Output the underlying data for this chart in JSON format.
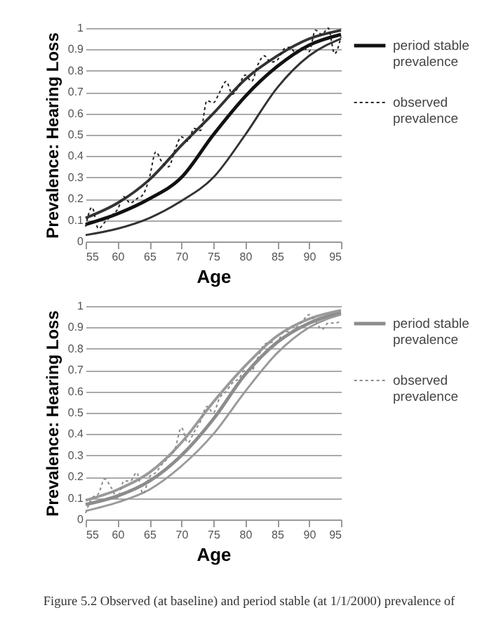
{
  "chart_data": [
    {
      "type": "line",
      "xlabel": "Age",
      "ylabel": "Prevalence: Hearing Loss",
      "xlim": [
        55,
        95
      ],
      "ylim": [
        0,
        1
      ],
      "xticks": [
        55,
        60,
        65,
        70,
        75,
        80,
        85,
        90,
        95
      ],
      "yticks": [
        0,
        0.1,
        0.2,
        0.3,
        0.4,
        0.5,
        0.6,
        0.7,
        0.8,
        0.9,
        1
      ],
      "grid": "y",
      "legend": "right",
      "series": [
        {
          "name": "period stable prevalence",
          "color": "#111111",
          "line_style": "solid",
          "x": [
            55,
            60,
            65,
            70,
            75,
            80,
            85,
            90,
            95
          ],
          "values": [
            0.08,
            0.13,
            0.2,
            0.3,
            0.5,
            0.68,
            0.82,
            0.92,
            0.97
          ]
        },
        {
          "color": "#333333",
          "line_style": "solid",
          "x": [
            55,
            60,
            65,
            70,
            75,
            80,
            85,
            90,
            95
          ],
          "values": [
            0.11,
            0.18,
            0.29,
            0.45,
            0.6,
            0.76,
            0.87,
            0.95,
            0.99
          ]
        },
        {
          "color": "#333333",
          "line_style": "solid",
          "x": [
            55,
            60,
            65,
            70,
            75,
            80,
            85,
            90,
            95
          ],
          "values": [
            0.03,
            0.06,
            0.11,
            0.19,
            0.3,
            0.5,
            0.72,
            0.87,
            0.95
          ]
        },
        {
          "name": "observed prevalence",
          "color": "#222222",
          "line_style": "dotted",
          "x": [
            55,
            56,
            57,
            58,
            59,
            60,
            61,
            62,
            63,
            64,
            65,
            66,
            67,
            68,
            69,
            70,
            71,
            72,
            73,
            74,
            75,
            76,
            77,
            78,
            79,
            80,
            81,
            82,
            83,
            84,
            85,
            86,
            87,
            88,
            89,
            90,
            91,
            92,
            93,
            94,
            95
          ],
          "values": [
            0.07,
            0.16,
            0.06,
            0.09,
            0.12,
            0.15,
            0.21,
            0.18,
            0.2,
            0.22,
            0.3,
            0.42,
            0.37,
            0.35,
            0.43,
            0.49,
            0.47,
            0.53,
            0.52,
            0.66,
            0.65,
            0.7,
            0.75,
            0.69,
            0.73,
            0.78,
            0.75,
            0.83,
            0.87,
            0.84,
            0.85,
            0.9,
            0.91,
            0.88,
            0.91,
            0.89,
            0.99,
            0.97,
            1.0,
            0.88,
            0.96
          ]
        }
      ]
    },
    {
      "type": "line",
      "xlabel": "Age",
      "ylabel": "Prevalence: Hearing Loss",
      "xlim": [
        55,
        95
      ],
      "ylim": [
        0,
        1
      ],
      "xticks": [
        55,
        60,
        65,
        70,
        75,
        80,
        85,
        90,
        95
      ],
      "yticks": [
        0,
        0.1,
        0.2,
        0.3,
        0.4,
        0.5,
        0.6,
        0.7,
        0.8,
        0.9,
        1
      ],
      "grid": "y",
      "legend": "right",
      "annotations": [
        "Figure 5.2 Observed (at baseline) and period stable (at 1/1/2000) prevalence of"
      ],
      "series": [
        {
          "name": "period stable prevalence",
          "color": "#8c8c8c",
          "line_style": "solid",
          "x": [
            55,
            60,
            65,
            70,
            75,
            80,
            85,
            90,
            95
          ],
          "values": [
            0.07,
            0.11,
            0.18,
            0.3,
            0.47,
            0.68,
            0.83,
            0.92,
            0.97
          ]
        },
        {
          "color": "#9a9a9a",
          "line_style": "solid",
          "x": [
            55,
            60,
            65,
            70,
            75,
            80,
            85,
            90,
            95
          ],
          "values": [
            0.09,
            0.14,
            0.22,
            0.36,
            0.55,
            0.72,
            0.86,
            0.94,
            0.98
          ]
        },
        {
          "color": "#9a9a9a",
          "line_style": "solid",
          "x": [
            55,
            60,
            65,
            70,
            75,
            80,
            85,
            90,
            95
          ],
          "values": [
            0.04,
            0.08,
            0.14,
            0.25,
            0.4,
            0.6,
            0.78,
            0.9,
            0.96
          ]
        },
        {
          "name": "observed prevalence",
          "color": "#8c8c8c",
          "line_style": "dotted",
          "x": [
            55,
            56,
            57,
            58,
            59,
            60,
            61,
            62,
            63,
            64,
            65,
            66,
            67,
            68,
            69,
            70,
            71,
            72,
            73,
            74,
            75,
            76,
            77,
            78,
            79,
            80,
            81,
            82,
            83,
            84,
            85,
            86,
            87,
            88,
            89,
            90,
            91,
            92,
            93,
            94,
            95
          ],
          "values": [
            0.03,
            0.1,
            0.12,
            0.19,
            0.15,
            0.1,
            0.18,
            0.18,
            0.22,
            0.12,
            0.2,
            0.22,
            0.26,
            0.29,
            0.33,
            0.43,
            0.36,
            0.41,
            0.46,
            0.53,
            0.5,
            0.57,
            0.6,
            0.64,
            0.66,
            0.7,
            0.7,
            0.76,
            0.82,
            0.83,
            0.83,
            0.88,
            0.88,
            0.9,
            0.93,
            0.96,
            0.93,
            0.89,
            0.92,
            0.92,
            0.93
          ]
        }
      ]
    }
  ]
}
